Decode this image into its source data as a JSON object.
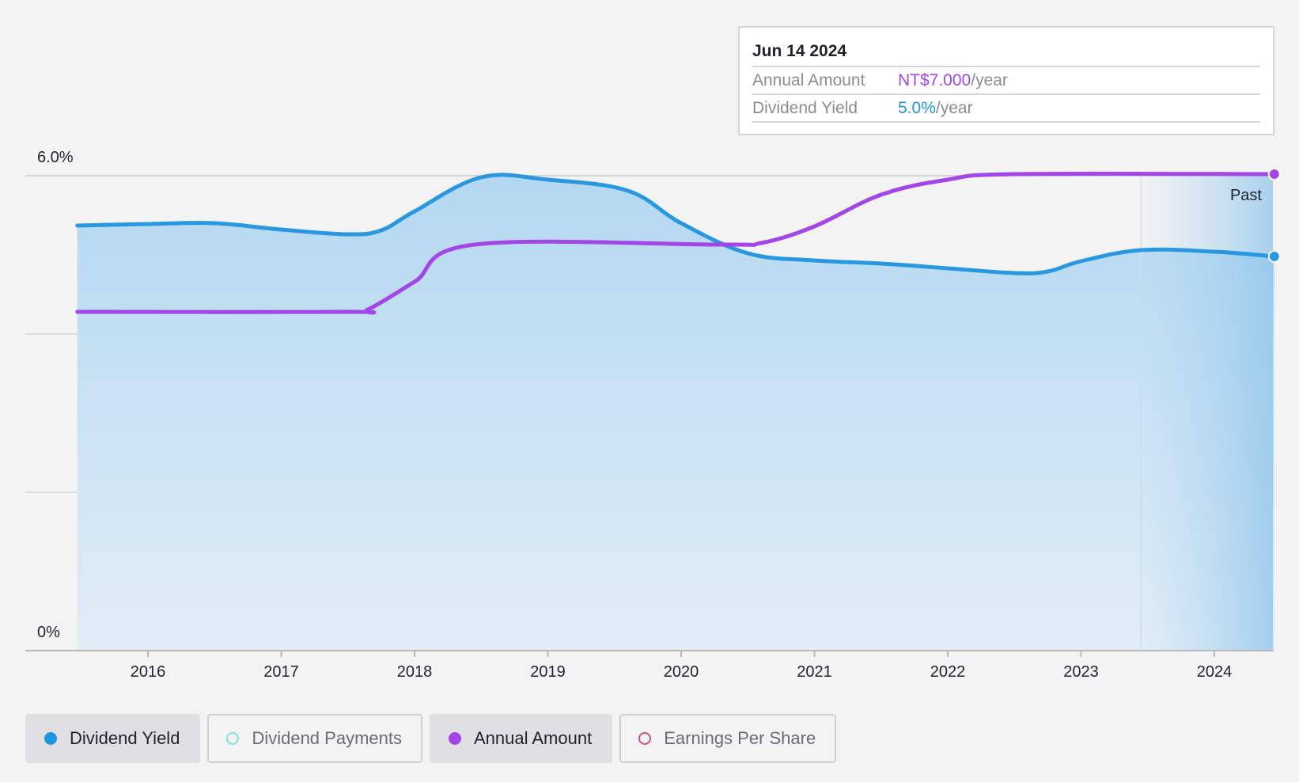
{
  "chart_data": {
    "type": "line",
    "y_axis": {
      "ylim": [
        0,
        6.0
      ],
      "tick_labels": [
        "6.0%",
        "0%"
      ],
      "grid": true
    },
    "x_axis": {
      "range": [
        2015.1,
        2024.45
      ],
      "ticks": [
        2016,
        2017,
        2018,
        2019,
        2020,
        2021,
        2022,
        2023,
        2024
      ]
    },
    "series": [
      {
        "name": "Dividend Yield",
        "color": "#2a98e0",
        "area": true,
        "points": [
          [
            2015.47,
            5.37
          ],
          [
            2016.0,
            5.39
          ],
          [
            2016.5,
            5.4
          ],
          [
            2017.0,
            5.32
          ],
          [
            2017.5,
            5.26
          ],
          [
            2017.75,
            5.31
          ],
          [
            2018.0,
            5.55
          ],
          [
            2018.5,
            5.98
          ],
          [
            2019.0,
            5.95
          ],
          [
            2019.6,
            5.81
          ],
          [
            2020.0,
            5.4
          ],
          [
            2020.5,
            5.02
          ],
          [
            2021.0,
            4.93
          ],
          [
            2021.5,
            4.89
          ],
          [
            2022.0,
            4.83
          ],
          [
            2022.5,
            4.77
          ],
          [
            2022.75,
            4.79
          ],
          [
            2023.0,
            4.92
          ],
          [
            2023.45,
            5.06
          ],
          [
            2024.0,
            5.04
          ],
          [
            2024.45,
            4.98
          ]
        ]
      },
      {
        "name": "Annual Amount",
        "color": "#a346e8",
        "area": false,
        "points": [
          [
            2015.47,
            4.28
          ],
          [
            2017.5,
            4.28
          ],
          [
            2017.65,
            4.31
          ],
          [
            2018.0,
            4.66
          ],
          [
            2018.45,
            5.13
          ],
          [
            2020.3,
            5.13
          ],
          [
            2020.6,
            5.15
          ],
          [
            2021.0,
            5.36
          ],
          [
            2021.5,
            5.76
          ],
          [
            2022.0,
            5.95
          ],
          [
            2022.5,
            6.02
          ],
          [
            2024.45,
            6.02
          ]
        ]
      }
    ],
    "past_region_start": 2023.45,
    "past_label": "Past",
    "tooltip": {
      "date": "Jun 14 2024",
      "rows": [
        {
          "label": "Annual Amount",
          "value": "NT$7.000",
          "unit": "/year"
        },
        {
          "label": "Dividend Yield",
          "value": "5.0%",
          "unit": "/year"
        }
      ]
    }
  },
  "legend": [
    {
      "label": "Dividend Yield",
      "active": true,
      "color": "#1e95dd",
      "filled": true
    },
    {
      "label": "Dividend Payments",
      "active": false,
      "color": "#7fe3dc",
      "filled": false
    },
    {
      "label": "Annual Amount",
      "active": true,
      "color": "#a346e8",
      "filled": true
    },
    {
      "label": "Earnings Per Share",
      "active": false,
      "color": "#cc4f8a",
      "filled": false
    }
  ]
}
